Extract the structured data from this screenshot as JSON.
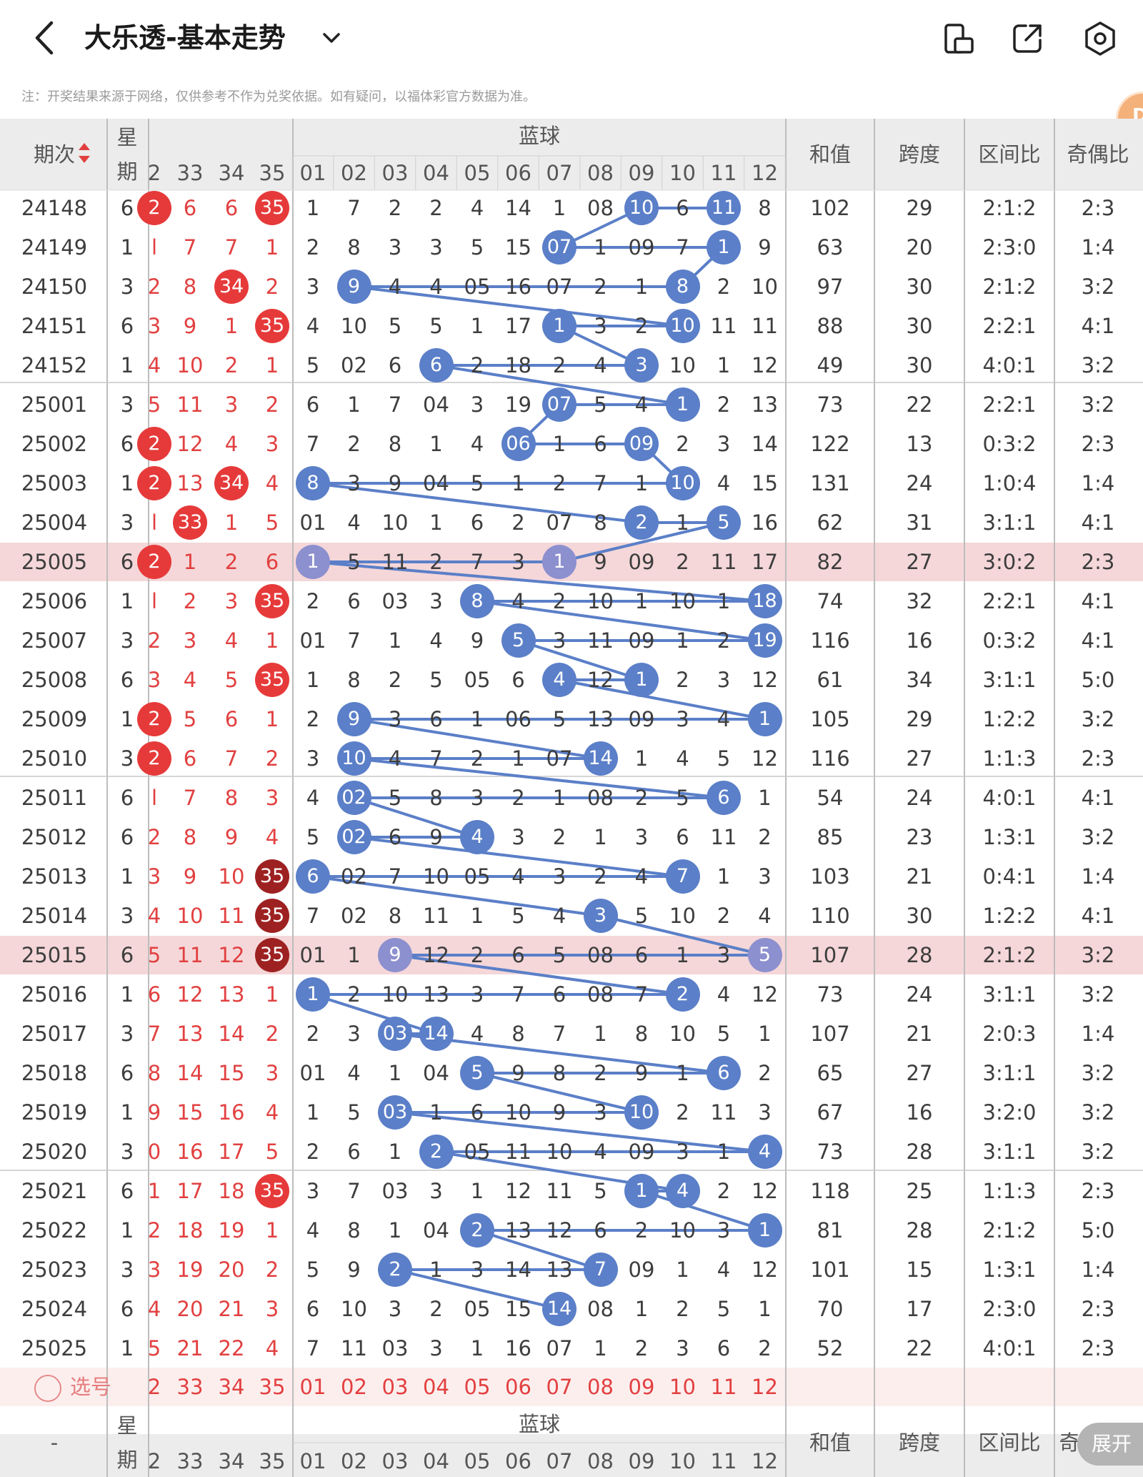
{
  "app": {
    "title": "大乐透-基本走势",
    "notice": "注：开奖结果来源于网络，仅供参考不作为兑奖依据。如有疑问，以福体彩官方数据为准。",
    "badge_text": "D",
    "expand_label": "展开",
    "pick_label": "选号",
    "icons": [
      "chevron-left-icon",
      "chevron-down-icon",
      "phone-tablet-icon",
      "share-icon",
      "settings-icon"
    ]
  },
  "table": {
    "col_period": "期次",
    "col_week_top": "星",
    "col_week_bottom": "期",
    "blue_header": "蓝球",
    "col_sum": "和值",
    "col_span": "跨度",
    "col_zone": "区间比",
    "col_oddeven": "奇偶比",
    "footer_period": "-",
    "footer_oddeven_partial": "奇",
    "front_headers": [
      "2",
      "33",
      "34",
      "35"
    ],
    "blue_headers": [
      "01",
      "02",
      "03",
      "04",
      "05",
      "06",
      "07",
      "08",
      "09",
      "10",
      "11",
      "12"
    ],
    "colors": {
      "red": "#e63a3a",
      "dark_red": "#9e2121",
      "blue": "#5b7fc8",
      "highlight": "#f5d7d9",
      "line": "#5b7fc8"
    },
    "rows": [
      {
        "period": "24148",
        "week": "6",
        "f": [
          "2",
          "6",
          "6",
          "35"
        ],
        "fh": [
          true,
          false,
          false,
          true
        ],
        "b": [
          "1",
          "7",
          "2",
          "2",
          "4",
          "14",
          "1",
          "08",
          "10",
          "6",
          "11",
          "8"
        ],
        "sum": "102",
        "span": "29",
        "zone": "2:1:2",
        "oe": "2:3"
      },
      {
        "period": "24149",
        "week": "1",
        "f": [
          "l",
          "7",
          "7",
          "1"
        ],
        "fh": [
          false,
          false,
          false,
          false
        ],
        "b": [
          "2",
          "8",
          "3",
          "3",
          "5",
          "15",
          "07",
          "1",
          "09",
          "7",
          "1",
          "9"
        ],
        "sum": "63",
        "span": "20",
        "zone": "2:3:0",
        "oe": "1:4"
      },
      {
        "period": "24150",
        "week": "3",
        "f": [
          "2",
          "8",
          "34",
          "2"
        ],
        "fh": [
          false,
          false,
          true,
          false
        ],
        "b": [
          "3",
          "9",
          "4",
          "4",
          "05",
          "16",
          "07",
          "2",
          "1",
          "8",
          "2",
          "10"
        ],
        "sum": "97",
        "span": "30",
        "zone": "2:1:2",
        "oe": "3:2"
      },
      {
        "period": "24151",
        "week": "6",
        "f": [
          "3",
          "9",
          "1",
          "35"
        ],
        "fh": [
          false,
          false,
          false,
          true
        ],
        "b": [
          "4",
          "10",
          "5",
          "5",
          "1",
          "17",
          "1",
          "3",
          "2",
          "10",
          "11",
          "11"
        ],
        "sum": "88",
        "span": "30",
        "zone": "2:2:1",
        "oe": "4:1"
      },
      {
        "period": "24152",
        "week": "1",
        "f": [
          "4",
          "10",
          "2",
          "1"
        ],
        "fh": [
          false,
          false,
          false,
          false
        ],
        "b": [
          "5",
          "02",
          "6",
          "6",
          "2",
          "18",
          "2",
          "4",
          "3",
          "10",
          "1",
          "12"
        ],
        "sum": "49",
        "span": "30",
        "zone": "4:0:1",
        "oe": "3:2"
      },
      {
        "period": "25001",
        "week": "3",
        "f": [
          "5",
          "11",
          "3",
          "2"
        ],
        "fh": [
          false,
          false,
          false,
          false
        ],
        "b": [
          "6",
          "1",
          "7",
          "04",
          "3",
          "19",
          "07",
          "5",
          "4",
          "1",
          "2",
          "13"
        ],
        "sum": "73",
        "span": "22",
        "zone": "2:2:1",
        "oe": "3:2"
      },
      {
        "period": "25002",
        "week": "6",
        "f": [
          "2",
          "12",
          "4",
          "3"
        ],
        "fh": [
          true,
          false,
          false,
          false
        ],
        "b": [
          "7",
          "2",
          "8",
          "1",
          "4",
          "06",
          "1",
          "6",
          "09",
          "2",
          "3",
          "14"
        ],
        "sum": "122",
        "span": "13",
        "zone": "0:3:2",
        "oe": "2:3"
      },
      {
        "period": "25003",
        "week": "1",
        "f": [
          "2",
          "13",
          "34",
          "4"
        ],
        "fh": [
          true,
          false,
          true,
          false
        ],
        "b": [
          "8",
          "3",
          "9",
          "04",
          "5",
          "1",
          "2",
          "7",
          "1",
          "10",
          "4",
          "15"
        ],
        "sum": "131",
        "span": "24",
        "zone": "1:0:4",
        "oe": "1:4"
      },
      {
        "period": "25004",
        "week": "3",
        "f": [
          "l",
          "33",
          "1",
          "5"
        ],
        "fh": [
          false,
          true,
          false,
          false
        ],
        "b": [
          "01",
          "4",
          "10",
          "1",
          "6",
          "2",
          "07",
          "8",
          "2",
          "1",
          "5",
          "16"
        ],
        "sum": "62",
        "span": "31",
        "zone": "3:1:1",
        "oe": "4:1"
      },
      {
        "period": "25005",
        "week": "6",
        "f": [
          "2",
          "1",
          "2",
          "6"
        ],
        "fh": [
          true,
          false,
          false,
          false
        ],
        "b": [
          "1",
          "5",
          "11",
          "2",
          "7",
          "3",
          "1",
          "9",
          "09",
          "2",
          "11",
          "17"
        ],
        "sum": "82",
        "span": "27",
        "zone": "3:0:2",
        "oe": "2:3",
        "hl": true
      },
      {
        "period": "25006",
        "week": "1",
        "f": [
          "l",
          "2",
          "3",
          "35"
        ],
        "fh": [
          false,
          false,
          false,
          true
        ],
        "b": [
          "2",
          "6",
          "03",
          "3",
          "8",
          "4",
          "2",
          "10",
          "1",
          "10",
          "1",
          "18"
        ],
        "sum": "74",
        "span": "32",
        "zone": "2:2:1",
        "oe": "4:1"
      },
      {
        "period": "25007",
        "week": "3",
        "f": [
          "2",
          "3",
          "4",
          "1"
        ],
        "fh": [
          false,
          false,
          false,
          false
        ],
        "b": [
          "01",
          "7",
          "1",
          "4",
          "9",
          "5",
          "3",
          "11",
          "09",
          "1",
          "2",
          "19"
        ],
        "sum": "116",
        "span": "16",
        "zone": "0:3:2",
        "oe": "4:1"
      },
      {
        "period": "25008",
        "week": "6",
        "f": [
          "3",
          "4",
          "5",
          "35"
        ],
        "fh": [
          false,
          false,
          false,
          true
        ],
        "b": [
          "1",
          "8",
          "2",
          "5",
          "05",
          "6",
          "4",
          "12",
          "1",
          "2",
          "3",
          "12"
        ],
        "sum": "61",
        "span": "34",
        "zone": "3:1:1",
        "oe": "5:0"
      },
      {
        "period": "25009",
        "week": "1",
        "f": [
          "2",
          "5",
          "6",
          "1"
        ],
        "fh": [
          true,
          false,
          false,
          false
        ],
        "b": [
          "2",
          "9",
          "3",
          "6",
          "1",
          "06",
          "5",
          "13",
          "09",
          "3",
          "4",
          "1"
        ],
        "sum": "105",
        "span": "29",
        "zone": "1:2:2",
        "oe": "3:2"
      },
      {
        "period": "25010",
        "week": "3",
        "f": [
          "2",
          "6",
          "7",
          "2"
        ],
        "fh": [
          true,
          false,
          false,
          false
        ],
        "b": [
          "3",
          "10",
          "4",
          "7",
          "2",
          "1",
          "07",
          "14",
          "1",
          "4",
          "5",
          "12"
        ],
        "sum": "116",
        "span": "27",
        "zone": "1:1:3",
        "oe": "2:3"
      },
      {
        "period": "25011",
        "week": "6",
        "f": [
          "l",
          "7",
          "8",
          "3"
        ],
        "fh": [
          false,
          false,
          false,
          false
        ],
        "b": [
          "4",
          "02",
          "5",
          "8",
          "3",
          "2",
          "1",
          "08",
          "2",
          "5",
          "6",
          "1"
        ],
        "sum": "54",
        "span": "24",
        "zone": "4:0:1",
        "oe": "4:1"
      },
      {
        "period": "25012",
        "week": "6",
        "f": [
          "2",
          "8",
          "9",
          "4"
        ],
        "fh": [
          false,
          false,
          false,
          false
        ],
        "b": [
          "5",
          "02",
          "6",
          "9",
          "4",
          "3",
          "2",
          "1",
          "3",
          "6",
          "11",
          "2"
        ],
        "sum": "85",
        "span": "23",
        "zone": "1:3:1",
        "oe": "3:2"
      },
      {
        "period": "25013",
        "week": "1",
        "f": [
          "3",
          "9",
          "10",
          "35"
        ],
        "fh": [
          false,
          false,
          false,
          true
        ],
        "dk": true,
        "b": [
          "6",
          "02",
          "7",
          "10",
          "05",
          "4",
          "3",
          "2",
          "4",
          "7",
          "1",
          "3"
        ],
        "sum": "103",
        "span": "21",
        "zone": "0:4:1",
        "oe": "1:4"
      },
      {
        "period": "25014",
        "week": "3",
        "f": [
          "4",
          "10",
          "11",
          "35"
        ],
        "fh": [
          false,
          false,
          false,
          true
        ],
        "dk": true,
        "b": [
          "7",
          "02",
          "8",
          "11",
          "1",
          "5",
          "4",
          "3",
          "5",
          "10",
          "2",
          "4"
        ],
        "sum": "110",
        "span": "30",
        "zone": "1:2:2",
        "oe": "4:1"
      },
      {
        "period": "25015",
        "week": "6",
        "f": [
          "5",
          "11",
          "12",
          "35"
        ],
        "fh": [
          false,
          false,
          false,
          true
        ],
        "dk": true,
        "b": [
          "01",
          "1",
          "9",
          "12",
          "2",
          "6",
          "5",
          "08",
          "6",
          "1",
          "3",
          "5"
        ],
        "sum": "107",
        "span": "28",
        "zone": "2:1:2",
        "oe": "3:2",
        "hl": true
      },
      {
        "period": "25016",
        "week": "1",
        "f": [
          "6",
          "12",
          "13",
          "1"
        ],
        "fh": [
          false,
          false,
          false,
          false
        ],
        "b": [
          "1",
          "2",
          "10",
          "13",
          "3",
          "7",
          "6",
          "08",
          "7",
          "2",
          "4",
          "12"
        ],
        "sum": "73",
        "span": "24",
        "zone": "3:1:1",
        "oe": "3:2"
      },
      {
        "period": "25017",
        "week": "3",
        "f": [
          "7",
          "13",
          "14",
          "2"
        ],
        "fh": [
          false,
          false,
          false,
          false
        ],
        "b": [
          "2",
          "3",
          "03",
          "14",
          "4",
          "8",
          "7",
          "1",
          "8",
          "10",
          "5",
          "1"
        ],
        "sum": "107",
        "span": "21",
        "zone": "2:0:3",
        "oe": "1:4"
      },
      {
        "period": "25018",
        "week": "6",
        "f": [
          "8",
          "14",
          "15",
          "3"
        ],
        "fh": [
          false,
          false,
          false,
          false
        ],
        "b": [
          "01",
          "4",
          "1",
          "04",
          "5",
          "9",
          "8",
          "2",
          "9",
          "1",
          "6",
          "2"
        ],
        "sum": "65",
        "span": "27",
        "zone": "3:1:1",
        "oe": "3:2"
      },
      {
        "period": "25019",
        "week": "1",
        "f": [
          "9",
          "15",
          "16",
          "4"
        ],
        "fh": [
          false,
          false,
          false,
          false
        ],
        "b": [
          "1",
          "5",
          "03",
          "1",
          "6",
          "10",
          "9",
          "3",
          "10",
          "2",
          "11",
          "3"
        ],
        "sum": "67",
        "span": "16",
        "zone": "3:2:0",
        "oe": "3:2"
      },
      {
        "period": "25020",
        "week": "3",
        "f": [
          "0",
          "16",
          "17",
          "5"
        ],
        "fh": [
          false,
          false,
          false,
          false
        ],
        "b": [
          "2",
          "6",
          "1",
          "2",
          "05",
          "11",
          "10",
          "4",
          "09",
          "3",
          "1",
          "4"
        ],
        "sum": "73",
        "span": "28",
        "zone": "3:1:1",
        "oe": "3:2"
      },
      {
        "period": "25021",
        "week": "6",
        "f": [
          "1",
          "17",
          "18",
          "35"
        ],
        "fh": [
          false,
          false,
          false,
          true
        ],
        "b": [
          "3",
          "7",
          "03",
          "3",
          "1",
          "12",
          "11",
          "5",
          "1",
          "4",
          "2",
          "12"
        ],
        "sum": "118",
        "span": "25",
        "zone": "1:1:3",
        "oe": "2:3"
      },
      {
        "period": "25022",
        "week": "1",
        "f": [
          "2",
          "18",
          "19",
          "1"
        ],
        "fh": [
          false,
          false,
          false,
          false
        ],
        "b": [
          "4",
          "8",
          "1",
          "04",
          "2",
          "13",
          "12",
          "6",
          "2",
          "10",
          "3",
          "1"
        ],
        "sum": "81",
        "span": "28",
        "zone": "2:1:2",
        "oe": "5:0"
      },
      {
        "period": "25023",
        "week": "3",
        "f": [
          "3",
          "19",
          "20",
          "2"
        ],
        "fh": [
          false,
          false,
          false,
          false
        ],
        "b": [
          "5",
          "9",
          "2",
          "1",
          "3",
          "14",
          "13",
          "7",
          "09",
          "1",
          "4",
          "12"
        ],
        "sum": "101",
        "span": "15",
        "zone": "1:3:1",
        "oe": "1:4"
      },
      {
        "period": "25024",
        "week": "6",
        "f": [
          "4",
          "20",
          "21",
          "3"
        ],
        "fh": [
          false,
          false,
          false,
          false
        ],
        "b": [
          "6",
          "10",
          "3",
          "2",
          "05",
          "15",
          "14",
          "08",
          "1",
          "2",
          "5",
          "1"
        ],
        "sum": "70",
        "span": "17",
        "zone": "2:3:0",
        "oe": "2:3"
      },
      {
        "period": "25025",
        "week": "1",
        "f": [
          "5",
          "21",
          "22",
          "4"
        ],
        "fh": [
          false,
          false,
          false,
          false
        ],
        "b": [
          "7",
          "11",
          "03",
          "3",
          "1",
          "16",
          "07",
          "1",
          "2",
          "3",
          "6",
          "2"
        ],
        "sum": "52",
        "span": "22",
        "zone": "4:0:1",
        "oe": "2:3"
      }
    ],
    "hits": [
      11,
      9,
      7,
      11,
      10,
      2,
      10,
      7,
      9,
      4,
      10,
      7,
      6,
      9,
      10,
      1,
      9,
      11,
      7,
      1,
      12,
      5,
      12,
      6,
      9,
      7,
      12,
      2,
      8,
      2,
      11,
      2,
      5,
      2,
      10,
      1,
      8,
      8,
      12,
      3,
      10,
      1,
      4,
      3,
      11,
      5,
      9,
      3,
      12,
      4,
      10,
      9,
      12,
      5,
      8,
      3,
      7
    ]
  }
}
